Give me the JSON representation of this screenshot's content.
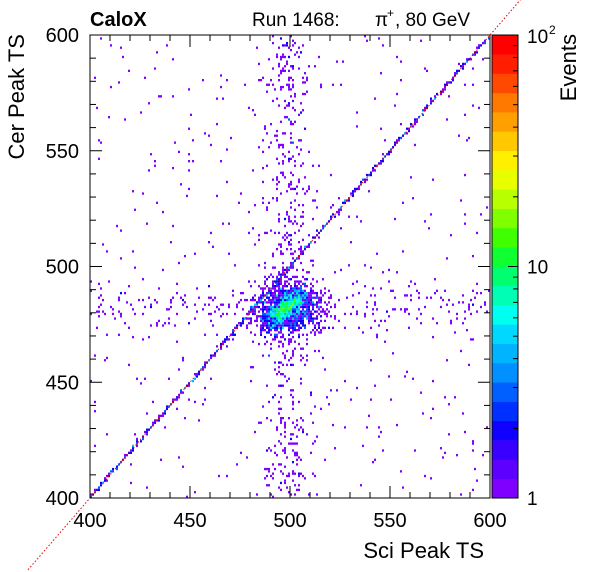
{
  "header": {
    "brand": "CaloX",
    "run_label": "Run 1468:",
    "particle_base": "π",
    "particle_sup": "+",
    "energy_label": ", 80 GeV"
  },
  "chart_data": {
    "type": "heatmap",
    "xlabel": "Sci Peak TS",
    "ylabel": "Cer Peak TS",
    "xlim": [
      400,
      600
    ],
    "ylim": [
      400,
      600
    ],
    "x_ticks": [
      "400",
      "450",
      "500",
      "550",
      "600"
    ],
    "y_ticks": [
      "400",
      "450",
      "500",
      "550",
      "600"
    ],
    "diagonal_reference": {
      "style": "red dotted",
      "from": [
        400,
        400
      ],
      "to": [
        600,
        600
      ]
    },
    "colorbar": {
      "label": "Events",
      "scale": "log",
      "range": [
        1,
        100
      ],
      "tick_labels": [
        "1",
        "10",
        "10"
      ],
      "top_tick_exponent": "2",
      "palette": [
        "#7f00ff",
        "#5d00ff",
        "#3a00ff",
        "#1000ff",
        "#0030ff",
        "#0060ff",
        "#0090ff",
        "#00b4ff",
        "#00d8ff",
        "#00fff0",
        "#00ffb4",
        "#00ff70",
        "#10ff30",
        "#40ff00",
        "#80ff00",
        "#b8ff00",
        "#e8ff00",
        "#fff000",
        "#ffc800",
        "#ffa000",
        "#ff7800",
        "#ff4800",
        "#ff1e00",
        "#ff0000"
      ]
    },
    "regions": [
      {
        "name": "core cluster",
        "x_range": [
          490,
          508
        ],
        "y_range": [
          476,
          490
        ],
        "peak_events": 8
      },
      {
        "name": "main cluster",
        "x_range": [
          478,
          525
        ],
        "y_range": [
          470,
          500
        ],
        "events": [
          1,
          4
        ]
      },
      {
        "name": "diagonal band",
        "x": "x = y",
        "events": [
          1,
          3
        ]
      },
      {
        "name": "vertical band",
        "x_range": [
          487,
          510
        ],
        "y_range": [
          400,
          600
        ],
        "events": 1
      },
      {
        "name": "horizontal band",
        "x_range": [
          400,
          600
        ],
        "y_range": [
          474,
          492
        ],
        "events": 1
      }
    ]
  }
}
